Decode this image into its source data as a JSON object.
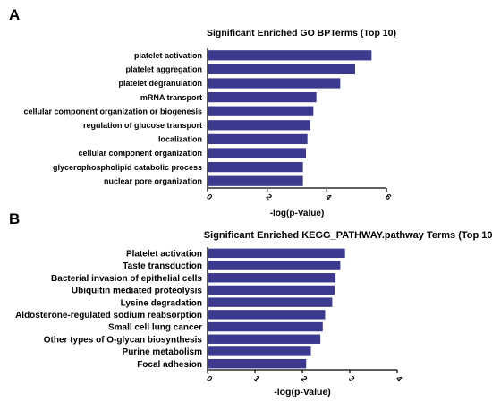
{
  "panels": [
    "A",
    "B"
  ],
  "chart_data": [
    {
      "type": "bar",
      "orientation": "horizontal",
      "title": "Significant Enriched GO BPTerms (Top 10)",
      "xlabel": "-log(p-Value)",
      "ylabel": "",
      "xlim": [
        0,
        6
      ],
      "xticks": [
        "0",
        "2",
        "4",
        "6"
      ],
      "categories": [
        "platelet activation",
        "platelet aggregation",
        "platelet degranulation",
        "mRNA transport",
        "cellular component organization or biogenesis",
        "regulation of glucose transport",
        "localization",
        "cellular component organization",
        "glycerophospholipid catabolic process",
        "nuclear pore organization"
      ],
      "values": [
        5.5,
        4.95,
        4.45,
        3.65,
        3.55,
        3.45,
        3.35,
        3.3,
        3.2,
        3.2
      ],
      "bar_color": "#3b3a8f",
      "grid": false,
      "legend": "none"
    },
    {
      "type": "bar",
      "orientation": "horizontal",
      "title": "Significant Enriched KEGG_PATHWAY.pathway Terms (Top 10)",
      "xlabel": "-log(p-Value)",
      "ylabel": "",
      "xlim": [
        0,
        4
      ],
      "xticks": [
        "0",
        "1",
        "2",
        "3",
        "4"
      ],
      "categories": [
        "Platelet activation",
        "Taste transduction",
        "Bacterial invasion of epithelial cells",
        "Ubiquitin mediated proteolysis",
        "Lysine degradation",
        "Aldosterone-regulated sodium reabsorption",
        "Small cell lung cancer",
        "Other types of O-glycan biosynthesis",
        "Purine metabolism",
        "Focal adhesion"
      ],
      "values": [
        2.9,
        2.8,
        2.7,
        2.68,
        2.63,
        2.48,
        2.43,
        2.38,
        2.18,
        2.08
      ],
      "bar_color": "#3b3a8f",
      "grid": false,
      "legend": "none"
    }
  ]
}
